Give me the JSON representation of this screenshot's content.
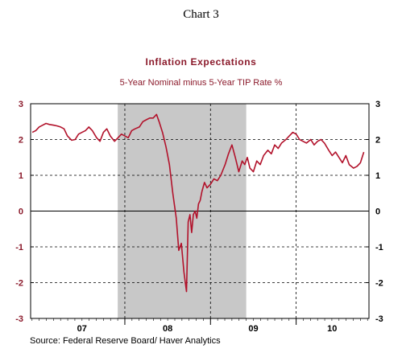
{
  "chart_data": {
    "type": "line",
    "header": "Chart 3",
    "title": "Inflation Expectations",
    "subtitle": "5-Year Nominal minus 5-Year TIP Rate  %",
    "source": "Source:  Federal Reserve Board/ Haver Analytics",
    "x_tick_labels": [
      "07",
      "08",
      "09",
      "10"
    ],
    "y_ticks": [
      "3",
      "2",
      "1",
      "0",
      "-1",
      "-2",
      "-3"
    ],
    "ylim": [
      -3,
      3
    ],
    "xlim": [
      2006.9,
      2010.85
    ],
    "grid": "dashed",
    "recession_shading": [
      2007.917,
      2009.417
    ],
    "series": [
      {
        "color": "#b2122b",
        "x": [
          2006.92,
          2006.96,
          2007.0,
          2007.04,
          2007.08,
          2007.12,
          2007.17,
          2007.21,
          2007.25,
          2007.29,
          2007.33,
          2007.38,
          2007.42,
          2007.46,
          2007.5,
          2007.54,
          2007.58,
          2007.62,
          2007.67,
          2007.71,
          2007.75,
          2007.79,
          2007.83,
          2007.88,
          2007.92,
          2007.96,
          2008.0,
          2008.04,
          2008.08,
          2008.12,
          2008.17,
          2008.21,
          2008.25,
          2008.29,
          2008.33,
          2008.37,
          2008.4,
          2008.44,
          2008.48,
          2008.52,
          2008.56,
          2008.6,
          2008.63,
          2008.66,
          2008.69,
          2008.72,
          2008.74,
          2008.76,
          2008.78,
          2008.8,
          2008.82,
          2008.84,
          2008.86,
          2008.88,
          2008.9,
          2008.93,
          2008.96,
          2009.0,
          2009.04,
          2009.08,
          2009.12,
          2009.17,
          2009.21,
          2009.25,
          2009.29,
          2009.33,
          2009.37,
          2009.4,
          2009.43,
          2009.46,
          2009.5,
          2009.54,
          2009.58,
          2009.62,
          2009.67,
          2009.71,
          2009.75,
          2009.79,
          2009.83,
          2009.88,
          2009.92,
          2009.96,
          2010.0,
          2010.04,
          2010.08,
          2010.12,
          2010.17,
          2010.21,
          2010.25,
          2010.29,
          2010.33,
          2010.38,
          2010.42,
          2010.46,
          2010.5,
          2010.54,
          2010.58,
          2010.62,
          2010.67,
          2010.71,
          2010.75,
          2010.79
        ],
        "y": [
          2.2,
          2.25,
          2.35,
          2.4,
          2.45,
          2.42,
          2.4,
          2.38,
          2.35,
          2.3,
          2.1,
          1.98,
          2.0,
          2.15,
          2.2,
          2.25,
          2.35,
          2.25,
          2.05,
          1.95,
          2.2,
          2.3,
          2.1,
          1.95,
          2.05,
          2.15,
          2.1,
          2.05,
          2.25,
          2.3,
          2.35,
          2.5,
          2.55,
          2.6,
          2.6,
          2.7,
          2.5,
          2.2,
          1.8,
          1.3,
          0.5,
          -0.2,
          -1.1,
          -0.9,
          -1.7,
          -2.25,
          -0.3,
          -0.1,
          -0.6,
          -0.1,
          0.0,
          -0.2,
          0.2,
          0.3,
          0.55,
          0.8,
          0.65,
          0.75,
          0.9,
          0.85,
          1.0,
          1.3,
          1.6,
          1.85,
          1.5,
          1.1,
          1.4,
          1.3,
          1.5,
          1.2,
          1.1,
          1.4,
          1.3,
          1.55,
          1.7,
          1.6,
          1.85,
          1.75,
          1.9,
          2.0,
          2.1,
          2.2,
          2.15,
          2.0,
          1.95,
          1.9,
          2.0,
          1.85,
          1.95,
          2.0,
          1.9,
          1.7,
          1.55,
          1.65,
          1.5,
          1.35,
          1.55,
          1.3,
          1.2,
          1.25,
          1.35,
          1.65
        ]
      }
    ]
  }
}
